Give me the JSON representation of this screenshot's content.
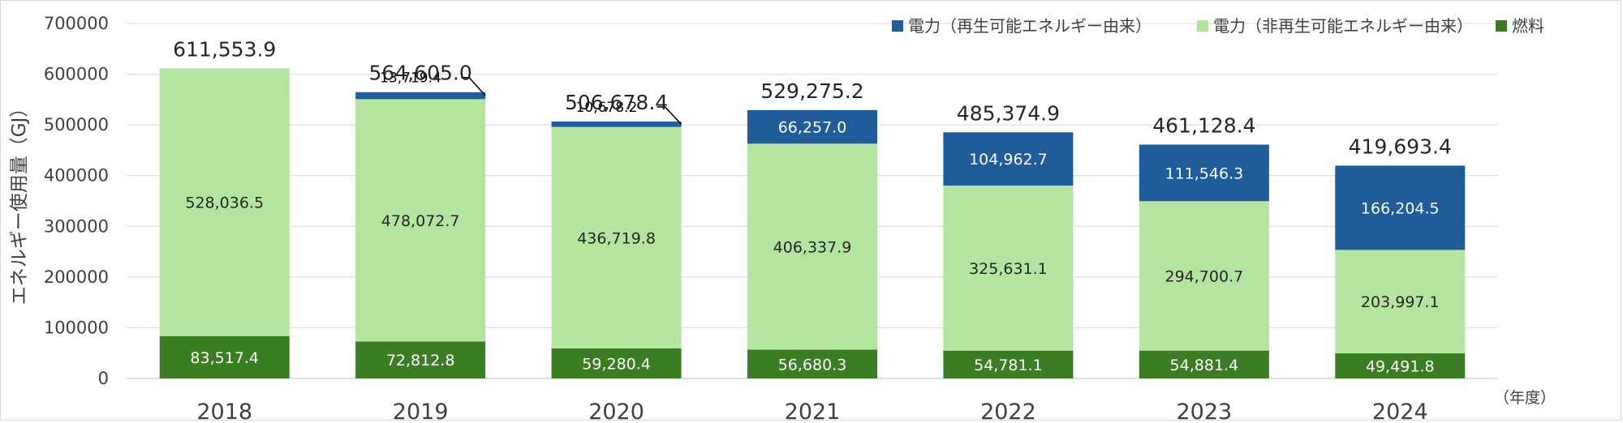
{
  "chart_data": {
    "type": "bar",
    "stacked": true,
    "ylabel": "エネルギー使用量（GJ）",
    "xunit": "（年度）",
    "ylim": [
      0,
      700000
    ],
    "yticks": [
      "0",
      "100000",
      "200000",
      "300000",
      "400000",
      "500000",
      "600000",
      "700000"
    ],
    "categories": [
      "2018",
      "2019",
      "2020",
      "2021",
      "2022",
      "2023",
      "2024"
    ],
    "series": [
      {
        "name": "燃料",
        "color": "#3b7d23",
        "label_color": "#ffffff",
        "values": [
          83517.4,
          72812.8,
          59280.4,
          56680.3,
          54781.1,
          54881.4,
          49491.8
        ],
        "labels": [
          "83,517.4",
          "72,812.8",
          "59,280.4",
          "56,680.3",
          "54,781.1",
          "54,881.4",
          "49,491.8"
        ]
      },
      {
        "name": "電力（非再生可能エネルギー由来）",
        "color": "#b3e5a0",
        "label_color": "#262626",
        "values": [
          528036.5,
          478072.7,
          436719.8,
          406337.9,
          325631.1,
          294700.7,
          203997.1
        ],
        "labels": [
          "528,036.5",
          "478,072.7",
          "436,719.8",
          "406,337.9",
          "325,631.1",
          "294,700.7",
          "203,997.1"
        ]
      },
      {
        "name": "電力（再生可能エネルギー由来）",
        "color": "#1f5c99",
        "label_color": "#ffffff",
        "values": [
          0,
          13719.4,
          10678.2,
          66257.0,
          104962.7,
          111546.3,
          166204.5
        ],
        "labels": [
          "",
          "13,719.4",
          "10,678.2",
          "66,257.0",
          "104,962.7",
          "111,546.3",
          "166,204.5"
        ]
      }
    ],
    "totals": [
      "611,553.9",
      "564,605.0",
      "506,678.4",
      "529,275.2",
      "485,374.9",
      "461,128.4",
      "419,693.4"
    ],
    "legend": {
      "position": "top-right",
      "items": [
        {
          "label": "電力（再生可能エネルギー由来）",
          "color": "#1f5c99"
        },
        {
          "label": "電力（非再生可能エネルギー由来）",
          "color": "#b3e5a0"
        },
        {
          "label": "燃料",
          "color": "#3b7d23"
        }
      ]
    },
    "grid": true,
    "colors": {
      "grid": "#d9d9d9",
      "text": "#404040",
      "axis": "#bfbfbf"
    }
  }
}
